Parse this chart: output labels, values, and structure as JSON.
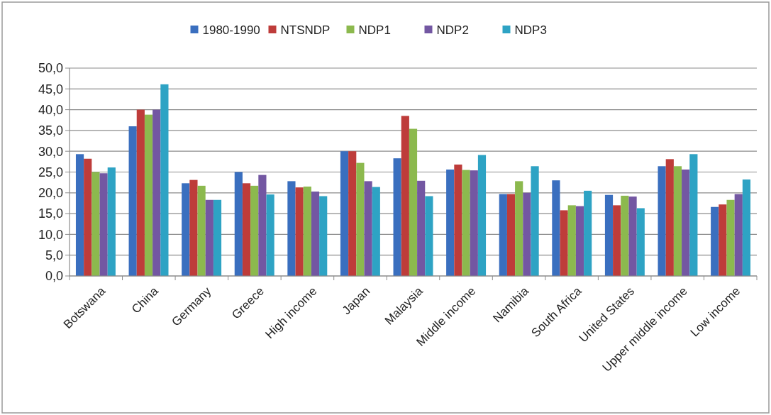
{
  "chart_data": {
    "type": "bar",
    "categories": [
      "Botswana",
      "China",
      "Germany",
      "Greece",
      "High income",
      "Japan",
      "Malaysia",
      "Middle income",
      "Namibia",
      "South Africa",
      "United States",
      "Upper middle income",
      "Low income"
    ],
    "series": [
      {
        "name": "1980-1990",
        "color": "#3a6fbf",
        "values": [
          29.3,
          36.0,
          22.3,
          25.0,
          22.8,
          30.0,
          28.3,
          25.6,
          19.7,
          23.0,
          19.5,
          26.4,
          16.6
        ]
      },
      {
        "name": "NTSNDP",
        "color": "#be3c3a",
        "values": [
          28.2,
          40.0,
          23.1,
          22.3,
          21.3,
          30.0,
          38.5,
          26.8,
          19.7,
          15.8,
          17.0,
          28.1,
          17.2
        ]
      },
      {
        "name": "NDP1",
        "color": "#8cb94e",
        "values": [
          25.0,
          38.8,
          21.7,
          21.7,
          21.5,
          27.2,
          35.4,
          25.5,
          22.8,
          17.0,
          19.3,
          26.4,
          18.3
        ]
      },
      {
        "name": "NDP2",
        "color": "#7357a2",
        "values": [
          24.7,
          40.0,
          18.3,
          24.3,
          20.3,
          22.8,
          22.9,
          25.4,
          20.0,
          16.8,
          19.1,
          25.6,
          19.7
        ]
      },
      {
        "name": "NDP3",
        "color": "#2ea3c4",
        "values": [
          26.1,
          46.1,
          18.3,
          19.6,
          19.2,
          21.4,
          19.2,
          29.1,
          26.4,
          20.5,
          16.3,
          29.3,
          23.2
        ]
      }
    ],
    "ylim": [
      0,
      50
    ],
    "yticks": [
      {
        "value": 0,
        "label": "0,0"
      },
      {
        "value": 5,
        "label": "5,0"
      },
      {
        "value": 10,
        "label": "10,0"
      },
      {
        "value": 15,
        "label": "15,0"
      },
      {
        "value": 20,
        "label": "20,0"
      },
      {
        "value": 25,
        "label": "25,0"
      },
      {
        "value": 30,
        "label": "30,0"
      },
      {
        "value": 35,
        "label": "35,0"
      },
      {
        "value": 40,
        "label": "40,0"
      },
      {
        "value": 45,
        "label": "45,0"
      },
      {
        "value": 50,
        "label": "50,0"
      }
    ],
    "grid": "y",
    "legend": "top"
  }
}
